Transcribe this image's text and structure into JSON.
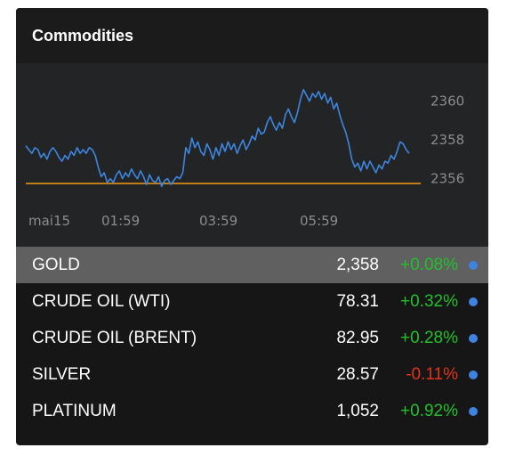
{
  "header": {
    "title": "Commodities"
  },
  "colors": {
    "positive": "#22c02b",
    "negative": "#e0341b",
    "line": "#3d86e0",
    "reference_line": "#c07e18",
    "dot": "#3f82e0"
  },
  "chart_data": {
    "type": "line",
    "series": [
      {
        "values": [
          2357.7,
          2357.5,
          2357.3,
          2357.6,
          2357.5,
          2357.1,
          2357.3,
          2357.0,
          2357.4,
          2357.6,
          2357.4,
          2357.1,
          2356.9,
          2357.2,
          2357.0,
          2357.4,
          2357.2,
          2357.6,
          2357.3,
          2357.5,
          2357.3,
          2357.6,
          2357.5,
          2357.2,
          2356.6,
          2356.1,
          2356.3,
          2355.8,
          2356.0,
          2355.8,
          2356.2,
          2356.4,
          2356.0,
          2356.3,
          2356.1,
          2356.5,
          2356.2,
          2356.0,
          2356.4,
          2356.1,
          2355.7,
          2356.2,
          2355.9,
          2355.8,
          2356.1,
          2355.6,
          2355.9,
          2356.0,
          2355.7,
          2355.9,
          2356.1,
          2356.0,
          2356.3,
          2357.6,
          2357.3,
          2358.1,
          2357.6,
          2357.9,
          2357.4,
          2357.2,
          2357.8,
          2357.5,
          2357.0,
          2357.6,
          2357.2,
          2357.8,
          2357.4,
          2357.9,
          2357.5,
          2357.8,
          2357.3,
          2357.7,
          2358.0,
          2357.5,
          2357.8,
          2358.2,
          2358.0,
          2358.6,
          2358.3,
          2358.4,
          2358.9,
          2359.2,
          2358.8,
          2358.5,
          2358.9,
          2358.6,
          2359.3,
          2359.6,
          2359.2,
          2358.9,
          2359.4,
          2360.1,
          2360.6,
          2360.3,
          2360.0,
          2360.4,
          2360.2,
          2360.5,
          2360.1,
          2360.4,
          2359.9,
          2360.2,
          2359.6,
          2359.9,
          2359.3,
          2358.8,
          2358.4,
          2357.8,
          2357.0,
          2356.6,
          2356.8,
          2356.4,
          2356.9,
          2356.5,
          2356.9,
          2356.6,
          2356.3,
          2356.7,
          2356.5,
          2356.9,
          2356.8,
          2357.2,
          2357.0,
          2357.4,
          2357.9,
          2357.8,
          2357.5,
          2357.3
        ]
      }
    ],
    "x_ticks": [
      "mai15",
      "01:59",
      "03:59",
      "05:59"
    ],
    "y_ticks": [
      2360,
      2358,
      2356
    ],
    "reference_value": 2355.75,
    "ylim": [
      2354.6,
      2361.5
    ],
    "y_axis_position": "right",
    "grid": false
  },
  "commodities": [
    {
      "name": "GOLD",
      "price": "2,358",
      "change": "+0.08%",
      "direction": "up",
      "selected": true
    },
    {
      "name": "CRUDE OIL (WTI)",
      "price": "78.31",
      "change": "+0.32%",
      "direction": "up",
      "selected": false
    },
    {
      "name": "CRUDE OIL (BRENT)",
      "price": "82.95",
      "change": "+0.28%",
      "direction": "up",
      "selected": false
    },
    {
      "name": "SILVER",
      "price": "28.57",
      "change": "-0.11%",
      "direction": "down",
      "selected": false
    },
    {
      "name": "PLATINUM",
      "price": "1,052",
      "change": "+0.92%",
      "direction": "up",
      "selected": false
    }
  ]
}
